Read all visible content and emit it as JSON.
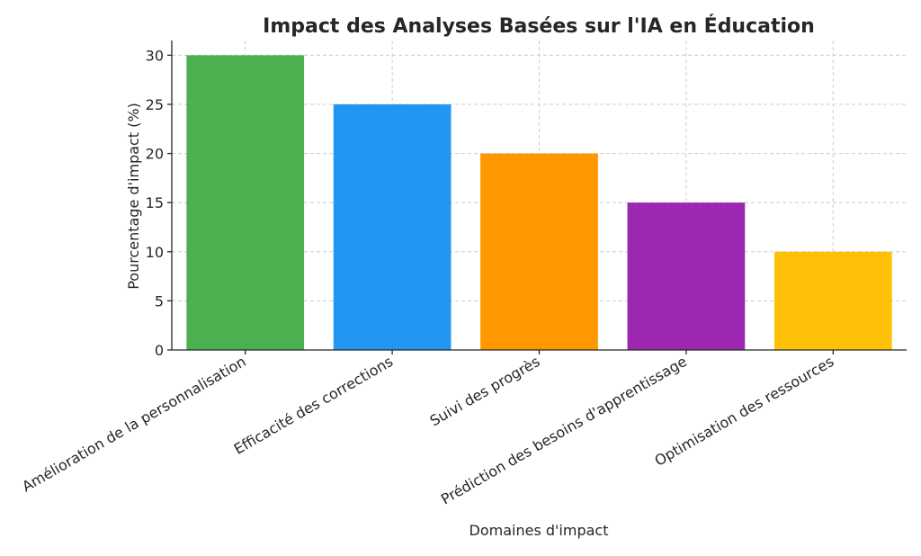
{
  "chart_data": {
    "type": "bar",
    "title": "Impact des Analyses Basées sur l'IA en Éducation",
    "xlabel": "Domaines d'impact",
    "ylabel": "Pourcentage d'impact (%)",
    "categories": [
      "Amélioration de la personnalisation",
      "Efficacité des corrections",
      "Suivi des progrès",
      "Prédiction des besoins d'apprentissage",
      "Optimisation des ressources"
    ],
    "values": [
      30,
      25,
      20,
      15,
      10
    ],
    "colors": [
      "#4caf50",
      "#2196f3",
      "#ff9800",
      "#9c27b0",
      "#ffc107"
    ],
    "ylim": [
      0,
      31.5
    ],
    "yticks": [
      0,
      5,
      10,
      15,
      20,
      25,
      30
    ],
    "grid": true
  }
}
